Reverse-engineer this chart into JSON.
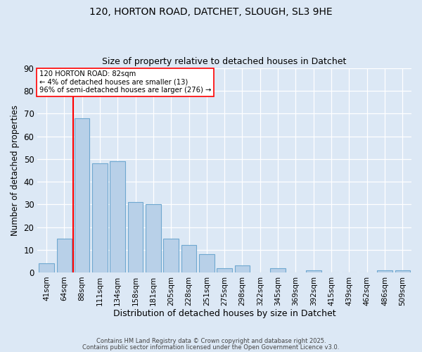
{
  "title1": "120, HORTON ROAD, DATCHET, SLOUGH, SL3 9HE",
  "title2": "Size of property relative to detached houses in Datchet",
  "xlabel": "Distribution of detached houses by size in Datchet",
  "ylabel": "Number of detached properties",
  "categories": [
    "41sqm",
    "64sqm",
    "88sqm",
    "111sqm",
    "134sqm",
    "158sqm",
    "181sqm",
    "205sqm",
    "228sqm",
    "251sqm",
    "275sqm",
    "298sqm",
    "322sqm",
    "345sqm",
    "369sqm",
    "392sqm",
    "415sqm",
    "439sqm",
    "462sqm",
    "486sqm",
    "509sqm"
  ],
  "values": [
    4,
    15,
    68,
    48,
    49,
    31,
    30,
    15,
    12,
    8,
    2,
    3,
    0,
    2,
    0,
    1,
    0,
    0,
    0,
    1,
    1
  ],
  "bar_color": "#b8d0e8",
  "bar_edge_color": "#6fa8d0",
  "redline_index": 2,
  "annotation_text": "120 HORTON ROAD: 82sqm\n← 4% of detached houses are smaller (13)\n96% of semi-detached houses are larger (276) →",
  "footer1": "Contains HM Land Registry data © Crown copyright and database right 2025.",
  "footer2": "Contains public sector information licensed under the Open Government Licence v3.0.",
  "bg_color": "#dce8f5",
  "plot_bg_color": "#dce8f5",
  "ylim": [
    0,
    90
  ],
  "yticks": [
    0,
    10,
    20,
    30,
    40,
    50,
    60,
    70,
    80,
    90
  ]
}
